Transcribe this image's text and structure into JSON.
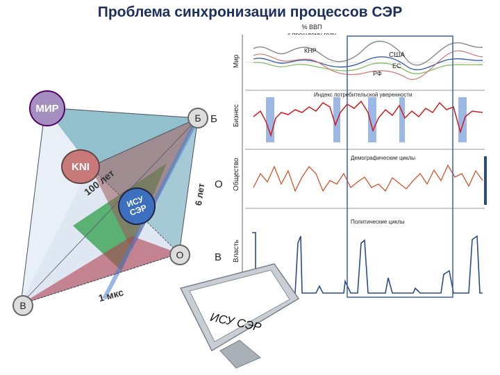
{
  "title": "Проблема синхронизации процессов СЭР",
  "gdp_note": "% ВВП\nк прошлому году",
  "panels": {
    "mir": {
      "axis_label": "Мир",
      "series": [
        "КНР",
        "США",
        "ЕС",
        "РФ"
      ]
    },
    "business": {
      "axis_label": "Бизнес",
      "caption": "Индекс потребительской уверенности"
    },
    "society": {
      "axis_label": "Общество",
      "caption": "Демографические циклы"
    },
    "power": {
      "axis_label": "Власть",
      "caption": "Политические циклы"
    }
  },
  "pyramid": {
    "mir": "МИР",
    "kni": "KNI",
    "isu": "ИСУ\nСЭР",
    "b_small": "Б",
    "o_small": "О",
    "v_small": "В",
    "b_side": "Б",
    "o_side": "О",
    "v_side": "В",
    "edge_100": "100 лет",
    "edge_6": "6 лет",
    "edge_1": "1 мкс"
  },
  "monitor_text": "ИСУ СЭР",
  "colors": {
    "title": "#1c2f5e",
    "business_line": "#d11a1a",
    "society_line": "#d2542a",
    "power_line": "#2a4a8a",
    "highlight": "#4a7fd0"
  }
}
